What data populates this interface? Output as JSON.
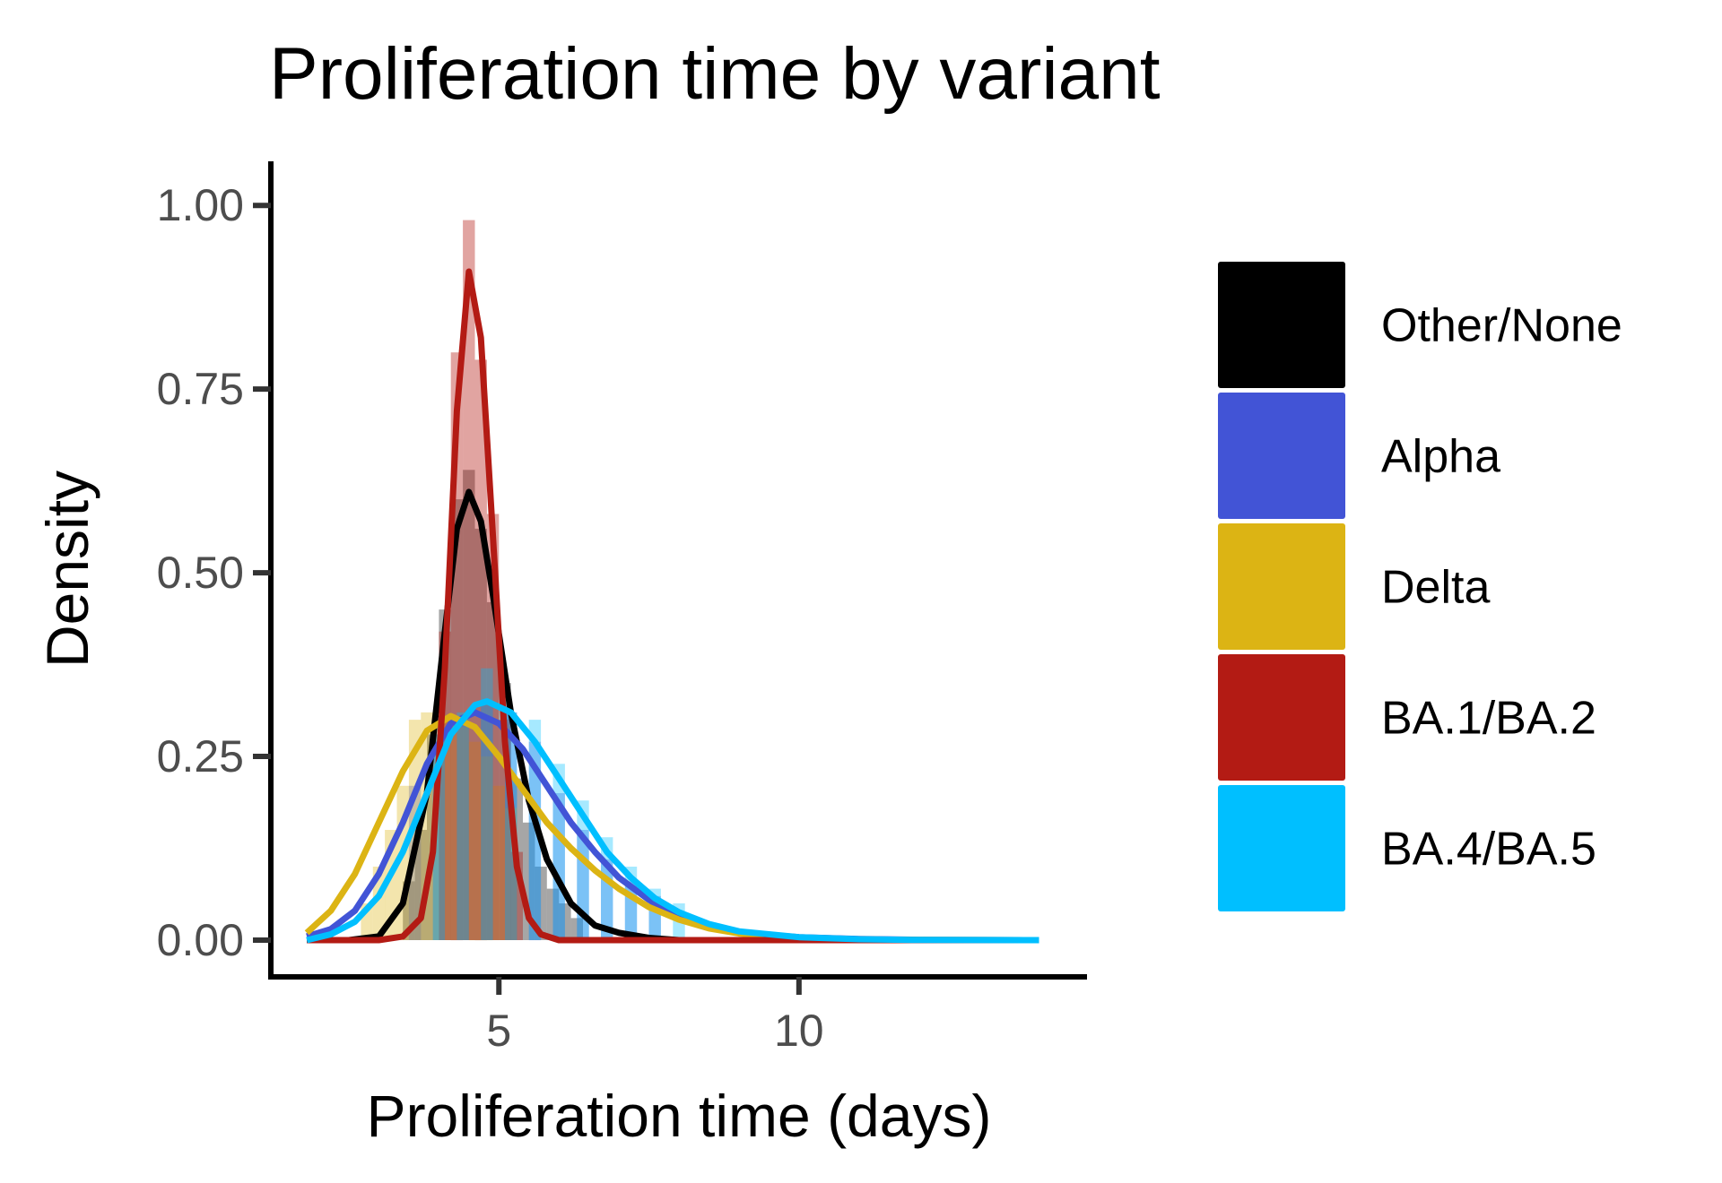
{
  "chart_data": {
    "type": "area",
    "title": "Proliferation time by variant",
    "xlabel": "Proliferation time (days)",
    "ylabel": "Density",
    "xlim": [
      1.2,
      14.8
    ],
    "ylim": [
      -0.05,
      1.06
    ],
    "x_ticks": [
      {
        "value": 5,
        "label": "5"
      },
      {
        "value": 10,
        "label": "10"
      }
    ],
    "y_ticks": [
      {
        "value": 0.0,
        "label": "0.00"
      },
      {
        "value": 0.25,
        "label": "0.25"
      },
      {
        "value": 0.5,
        "label": "0.50"
      },
      {
        "value": 0.75,
        "label": "0.75"
      },
      {
        "value": 1.0,
        "label": "1.00"
      }
    ],
    "grid": false,
    "legend_position": "right",
    "series": [
      {
        "name": "Other/None",
        "color": "#000000",
        "fill_opacity": 0.35,
        "curve": [
          [
            1.8,
            0.0
          ],
          [
            2.5,
            0.0
          ],
          [
            3.0,
            0.005
          ],
          [
            3.4,
            0.05
          ],
          [
            3.8,
            0.2
          ],
          [
            4.1,
            0.42
          ],
          [
            4.3,
            0.56
          ],
          [
            4.5,
            0.61
          ],
          [
            4.7,
            0.57
          ],
          [
            4.9,
            0.47
          ],
          [
            5.2,
            0.31
          ],
          [
            5.5,
            0.19
          ],
          [
            5.8,
            0.11
          ],
          [
            6.2,
            0.05
          ],
          [
            6.6,
            0.02
          ],
          [
            7.0,
            0.01
          ],
          [
            7.5,
            0.003
          ],
          [
            8.0,
            0.0
          ],
          [
            10.0,
            0.0
          ],
          [
            14.0,
            0.0
          ]
        ],
        "bins": [
          [
            3.5,
            0.08
          ],
          [
            3.7,
            0.15
          ],
          [
            3.9,
            0.28
          ],
          [
            4.1,
            0.45
          ],
          [
            4.3,
            0.6
          ],
          [
            4.5,
            0.64
          ],
          [
            4.7,
            0.56
          ],
          [
            4.9,
            0.46
          ],
          [
            5.1,
            0.35
          ],
          [
            5.3,
            0.22
          ],
          [
            5.5,
            0.16
          ],
          [
            5.7,
            0.1
          ],
          [
            5.9,
            0.07
          ],
          [
            6.1,
            0.05
          ],
          [
            6.3,
            0.03
          ]
        ]
      },
      {
        "name": "Alpha",
        "color": "#4254d6",
        "fill_opacity": 0.35,
        "curve": [
          [
            1.8,
            0.005
          ],
          [
            2.2,
            0.015
          ],
          [
            2.6,
            0.04
          ],
          [
            3.0,
            0.09
          ],
          [
            3.4,
            0.16
          ],
          [
            3.8,
            0.24
          ],
          [
            4.2,
            0.295
          ],
          [
            4.6,
            0.31
          ],
          [
            5.0,
            0.295
          ],
          [
            5.4,
            0.26
          ],
          [
            5.8,
            0.21
          ],
          [
            6.2,
            0.16
          ],
          [
            6.6,
            0.12
          ],
          [
            7.0,
            0.085
          ],
          [
            7.5,
            0.055
          ],
          [
            8.0,
            0.03
          ],
          [
            8.5,
            0.018
          ],
          [
            9.0,
            0.01
          ],
          [
            10.0,
            0.004
          ],
          [
            11.0,
            0.0015
          ],
          [
            12.0,
            0.0005
          ],
          [
            14.0,
            0.0
          ]
        ],
        "bins": [
          [
            3.6,
            0.21
          ],
          [
            4.0,
            0.29
          ],
          [
            4.4,
            0.3
          ],
          [
            4.8,
            0.32
          ],
          [
            5.2,
            0.31
          ],
          [
            5.6,
            0.27
          ],
          [
            6.0,
            0.2
          ],
          [
            6.4,
            0.15
          ],
          [
            6.8,
            0.11
          ],
          [
            7.2,
            0.08
          ],
          [
            7.6,
            0.06
          ]
        ]
      },
      {
        "name": "Delta",
        "color": "#dcb414",
        "fill_opacity": 0.35,
        "curve": [
          [
            1.8,
            0.01
          ],
          [
            2.2,
            0.04
          ],
          [
            2.6,
            0.09
          ],
          [
            3.0,
            0.16
          ],
          [
            3.4,
            0.23
          ],
          [
            3.8,
            0.285
          ],
          [
            4.2,
            0.305
          ],
          [
            4.6,
            0.29
          ],
          [
            5.0,
            0.25
          ],
          [
            5.4,
            0.205
          ],
          [
            5.8,
            0.16
          ],
          [
            6.2,
            0.125
          ],
          [
            6.6,
            0.095
          ],
          [
            7.0,
            0.07
          ],
          [
            7.5,
            0.045
          ],
          [
            8.0,
            0.028
          ],
          [
            8.5,
            0.016
          ],
          [
            9.0,
            0.009
          ],
          [
            10.0,
            0.003
          ],
          [
            11.0,
            0.001
          ],
          [
            12.0,
            0.0003
          ],
          [
            14.0,
            0.0
          ]
        ],
        "bins": [
          [
            2.8,
            0.05
          ],
          [
            3.0,
            0.1
          ],
          [
            3.2,
            0.15
          ],
          [
            3.4,
            0.21
          ],
          [
            3.6,
            0.3
          ],
          [
            3.8,
            0.31
          ],
          [
            4.0,
            0.3
          ],
          [
            4.2,
            0.3
          ],
          [
            4.4,
            0.29
          ],
          [
            4.6,
            0.27
          ],
          [
            4.8,
            0.25
          ],
          [
            5.0,
            0.21
          ],
          [
            5.2,
            0.18
          ]
        ]
      },
      {
        "name": "BA.1/BA.2",
        "color": "#b31b14",
        "fill_opacity": 0.4,
        "curve": [
          [
            1.8,
            0.0
          ],
          [
            3.0,
            0.0
          ],
          [
            3.4,
            0.005
          ],
          [
            3.7,
            0.03
          ],
          [
            3.9,
            0.12
          ],
          [
            4.1,
            0.37
          ],
          [
            4.3,
            0.72
          ],
          [
            4.5,
            0.91
          ],
          [
            4.7,
            0.82
          ],
          [
            4.9,
            0.55
          ],
          [
            5.1,
            0.27
          ],
          [
            5.3,
            0.1
          ],
          [
            5.5,
            0.03
          ],
          [
            5.7,
            0.008
          ],
          [
            6.0,
            0.0
          ],
          [
            8.0,
            0.0
          ],
          [
            14.0,
            0.0
          ]
        ],
        "bins": [
          [
            4.1,
            0.42
          ],
          [
            4.3,
            0.8
          ],
          [
            4.5,
            0.98
          ],
          [
            4.7,
            0.79
          ],
          [
            4.9,
            0.58
          ],
          [
            5.1,
            0.3
          ],
          [
            5.3,
            0.12
          ]
        ]
      },
      {
        "name": "BA.4/BA.5",
        "color": "#00bfff",
        "fill_opacity": 0.35,
        "curve": [
          [
            1.8,
            0.0
          ],
          [
            2.2,
            0.008
          ],
          [
            2.6,
            0.025
          ],
          [
            3.0,
            0.06
          ],
          [
            3.4,
            0.12
          ],
          [
            3.8,
            0.2
          ],
          [
            4.2,
            0.28
          ],
          [
            4.6,
            0.32
          ],
          [
            4.8,
            0.325
          ],
          [
            5.2,
            0.31
          ],
          [
            5.6,
            0.27
          ],
          [
            6.0,
            0.22
          ],
          [
            6.4,
            0.17
          ],
          [
            6.8,
            0.12
          ],
          [
            7.2,
            0.085
          ],
          [
            7.6,
            0.057
          ],
          [
            8.0,
            0.038
          ],
          [
            8.5,
            0.022
          ],
          [
            9.0,
            0.012
          ],
          [
            10.0,
            0.004
          ],
          [
            11.0,
            0.0012
          ],
          [
            12.0,
            0.0003
          ],
          [
            14.0,
            0.0
          ]
        ],
        "bins": [
          [
            4.0,
            0.28
          ],
          [
            4.4,
            0.31
          ],
          [
            4.8,
            0.37
          ],
          [
            5.2,
            0.31
          ],
          [
            5.6,
            0.3
          ],
          [
            6.0,
            0.24
          ],
          [
            6.4,
            0.19
          ],
          [
            6.8,
            0.14
          ],
          [
            7.2,
            0.1
          ],
          [
            7.6,
            0.07
          ],
          [
            8.0,
            0.05
          ]
        ]
      }
    ]
  }
}
